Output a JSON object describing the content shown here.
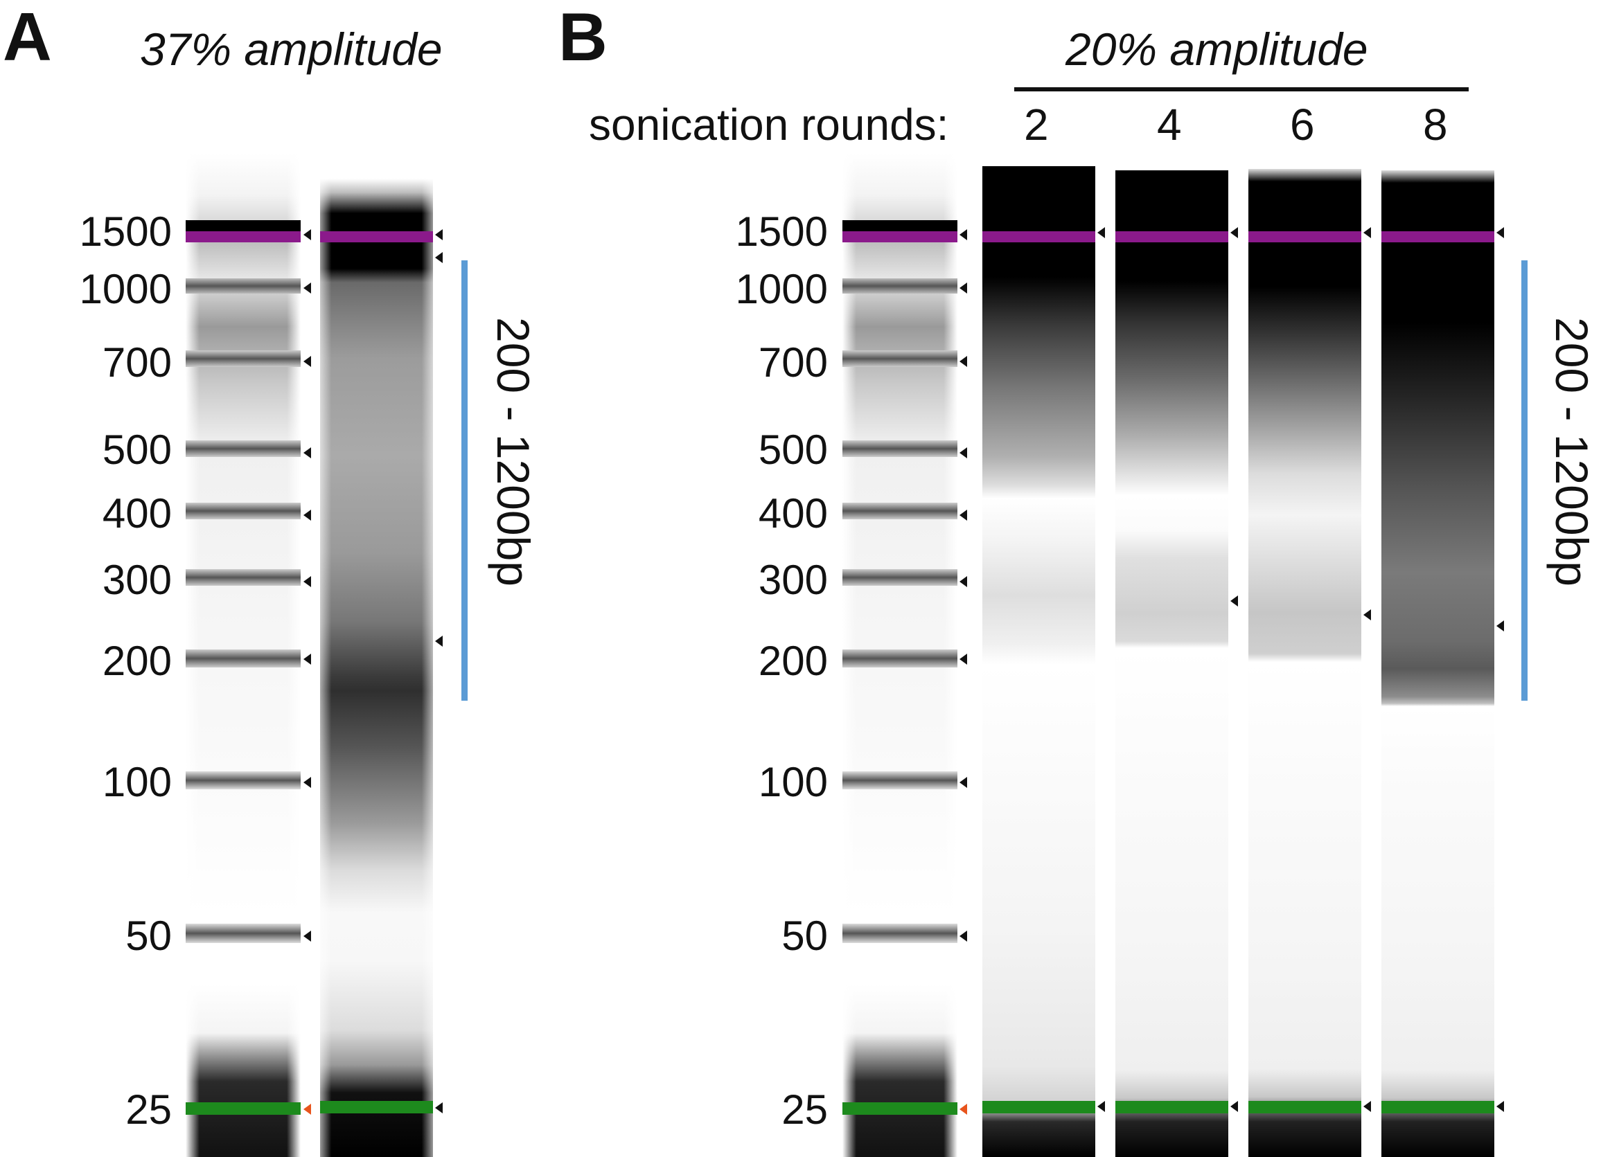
{
  "panels": [
    {
      "letter": "A",
      "title": "37% amplitude",
      "range_label": "200 - 1200bp"
    },
    {
      "letter": "B",
      "title": "20% amplitude",
      "rounds_label": "sonication rounds:",
      "rounds": [
        "2",
        "4",
        "6",
        "8"
      ],
      "range_label": "200 - 1200bp"
    }
  ],
  "ladder_markers": [
    "1500",
    "1000",
    "700",
    "500",
    "400",
    "300",
    "200",
    "100",
    "50",
    "25"
  ],
  "colors": {
    "upper_marker": "#8b1a8b",
    "lower_marker": "#1d8a1d",
    "range_bar": "#5b9bd5",
    "lower_marker_arrow": "#e8541c"
  }
}
